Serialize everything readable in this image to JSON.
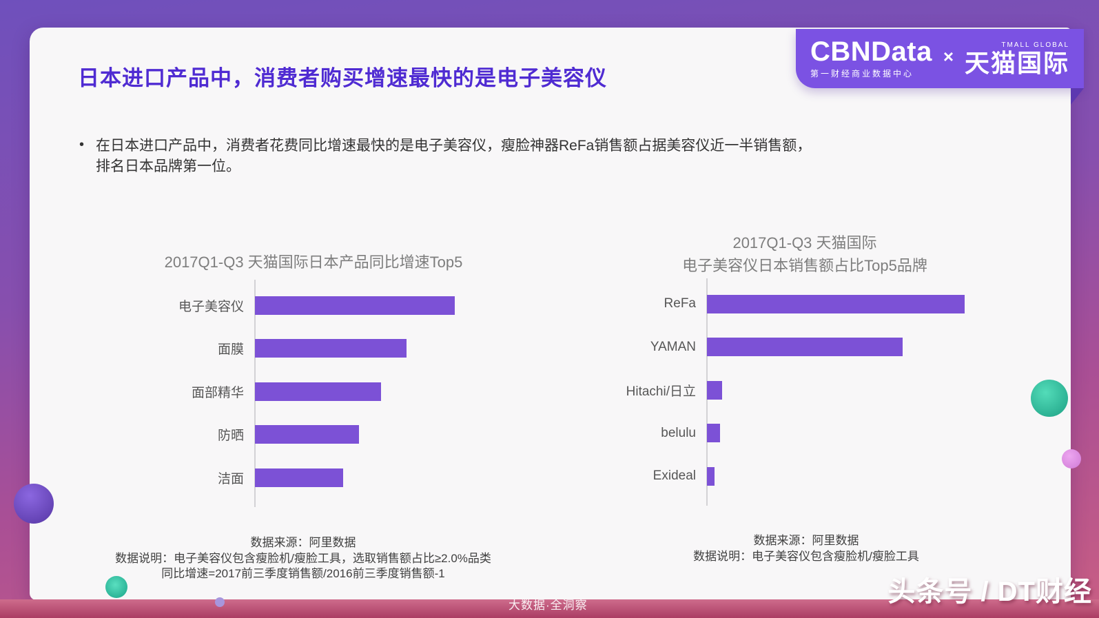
{
  "slide": {
    "title": "日本进口产品中，消费者购买增速最快的是电子美容仪",
    "bullet_lines": [
      "在日本进口产品中，消费者花费同比增速最快的是电子美容仪，瘦脸神器ReFa销售额占据美容仪近一半销售额，",
      "排名日本品牌第一位。"
    ]
  },
  "logo": {
    "cbndata": "CBNData",
    "cbndata_subtitle": "第一财经商业数据中心",
    "multiply_sign": "×",
    "tmall_global_small": "TMALL GLOBAL",
    "tmall_cn": "天猫国际"
  },
  "chart_data": [
    {
      "type": "bar",
      "orientation": "horizontal",
      "title_lines": [
        "2017Q1-Q3 天猫国际日本产品同比增速Top5"
      ],
      "categories": [
        "电子美容仪",
        "面膜",
        "面部精华",
        "防晒",
        "洁面"
      ],
      "values": [
        100,
        76,
        63,
        52,
        44
      ],
      "values_note": "no numeric labels shown; values are relative bar lengths, longest = 100",
      "xlim": [
        0,
        100
      ],
      "grid": false,
      "legend": false,
      "bar_color": "#7C51D6",
      "footnotes": [
        "数据来源：阿里数据",
        "数据说明：电子美容仪包含瘦脸机/瘦脸工具，选取销售额占比≥2.0%品类",
        "同比增速=2017前三季度销售额/2016前三季度销售额-1"
      ]
    },
    {
      "type": "bar",
      "orientation": "horizontal",
      "title_lines": [
        "2017Q1-Q3 天猫国际",
        "电子美容仪日本销售额占比Top5品牌"
      ],
      "categories": [
        "ReFa",
        "YAMAN",
        "Hitachi/日立",
        "belulu",
        "Exideal"
      ],
      "values": [
        100,
        76,
        6,
        5,
        3
      ],
      "values_note": "no numeric labels shown; values are relative bar lengths, longest = 100",
      "xlim": [
        0,
        100
      ],
      "grid": false,
      "legend": false,
      "bar_color": "#7C51D6",
      "footnotes": [
        "数据来源：阿里数据",
        "数据说明：电子美容仪包含瘦脸机/瘦脸工具"
      ]
    }
  ],
  "watermarks": {
    "bottom_center": "大数据·全洞察",
    "bottom_right": "头条号 / DT财经"
  },
  "colors": {
    "bar": "#7C51D6",
    "title_text": "#4F2BD2",
    "badge_bg": "#7B52E3",
    "badge_fold": "#5D38B0",
    "band_top": "#CE6C8C",
    "band_bottom": "#AA3C63",
    "accent_teal": "#2EC4A5",
    "accent_pink": "#E18CE4",
    "accent_purple": "#6C49BE"
  }
}
